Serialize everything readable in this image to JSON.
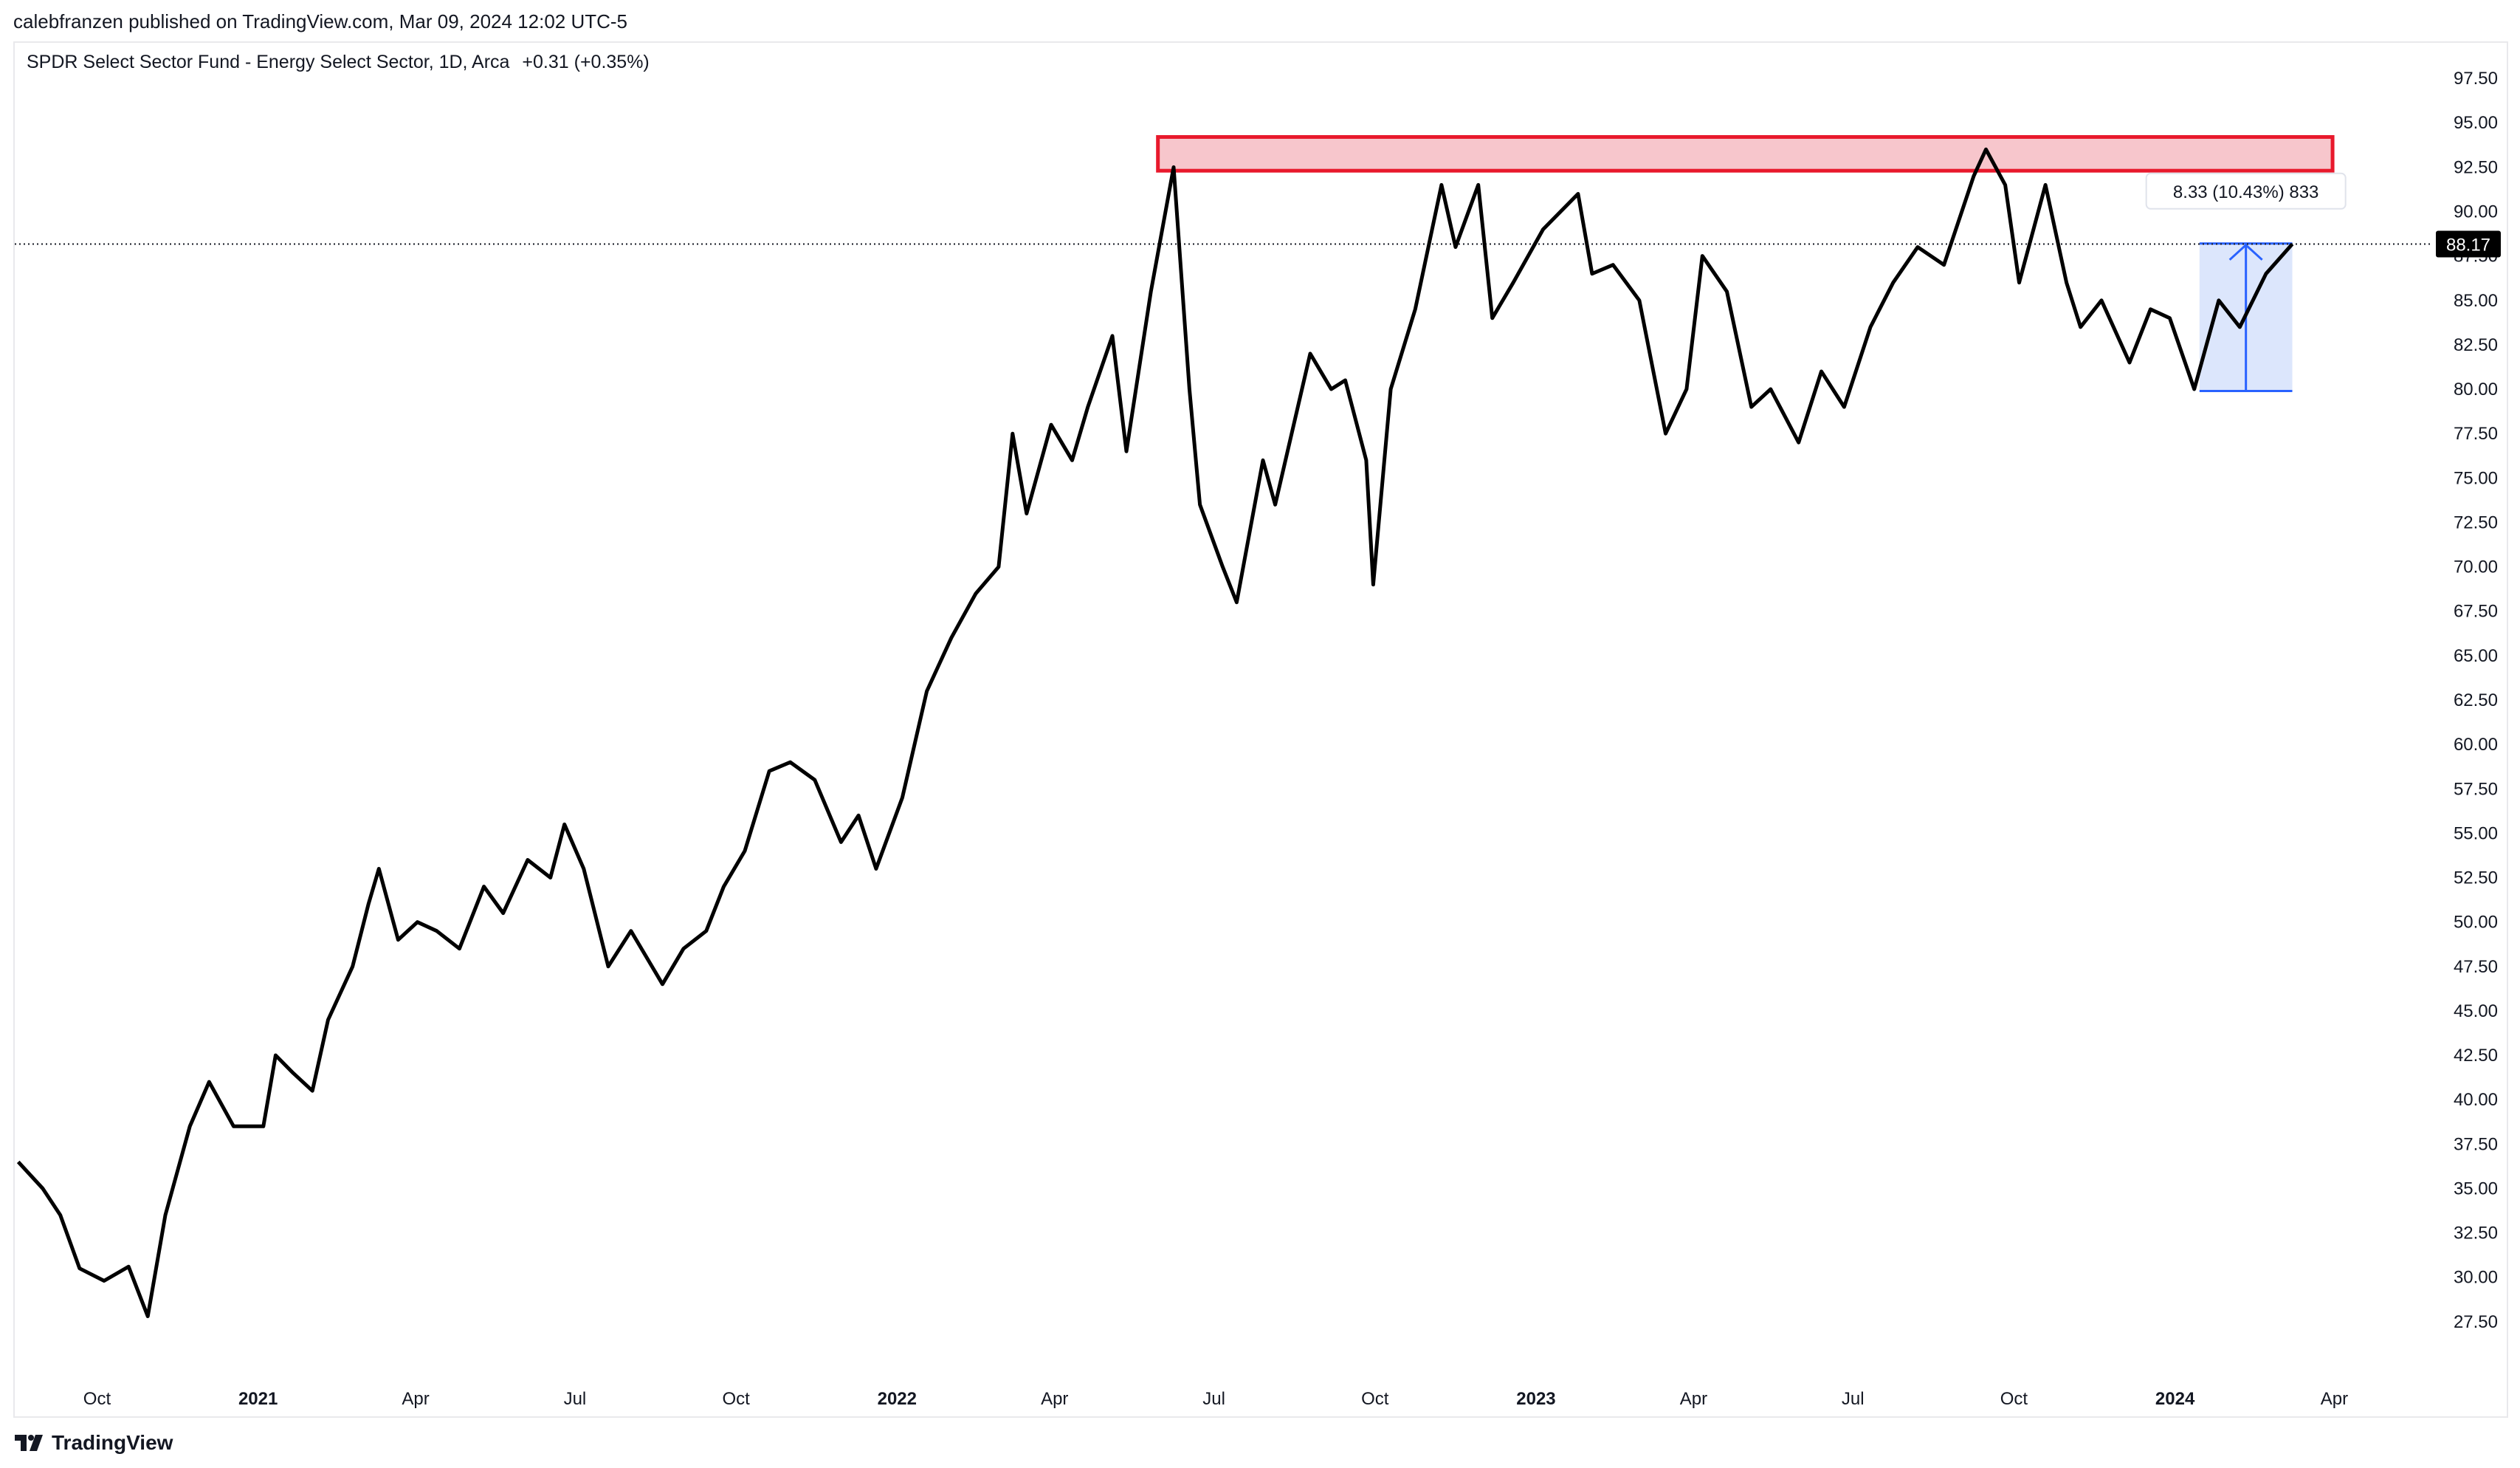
{
  "header": {
    "published": "calebfranzen published on TradingView.com, Mar 09, 2024 12:02 UTC-5",
    "symbol": "SPDR Select Sector Fund - Energy Select Sector, 1D, Arca",
    "change": "+0.31 (+0.35%)"
  },
  "footer": {
    "brand": "TradingView",
    "logo_icon": "tradingview-logo-icon"
  },
  "colors": {
    "line": "#000000",
    "resistance_fill": "#f7c6cc",
    "resistance_stroke": "#e8192c",
    "measure_fill": "#d6e2fb",
    "measure_stroke": "#2962ff",
    "last_price_bg": "#000000",
    "grid": "#f0f3fa"
  },
  "chart_data": {
    "type": "line",
    "ylim": [
      25.0,
      99.5
    ],
    "y_ticks": [
      "27.50",
      "30.00",
      "32.50",
      "35.00",
      "37.50",
      "40.00",
      "42.50",
      "45.00",
      "47.50",
      "50.00",
      "52.50",
      "55.00",
      "57.50",
      "60.00",
      "62.50",
      "65.00",
      "67.50",
      "70.00",
      "72.50",
      "75.00",
      "77.50",
      "80.00",
      "82.50",
      "85.00",
      "87.50",
      "90.00",
      "92.50",
      "95.00",
      "97.50"
    ],
    "x_ticks": [
      {
        "label": "Oct",
        "date": "2020-10-01"
      },
      {
        "label": "2021",
        "date": "2021-01-01",
        "bold": true
      },
      {
        "label": "Apr",
        "date": "2021-04-01"
      },
      {
        "label": "Jul",
        "date": "2021-07-01"
      },
      {
        "label": "Oct",
        "date": "2021-10-01"
      },
      {
        "label": "2022",
        "date": "2022-01-01",
        "bold": true
      },
      {
        "label": "Apr",
        "date": "2022-04-01"
      },
      {
        "label": "Jul",
        "date": "2022-07-01"
      },
      {
        "label": "Oct",
        "date": "2022-10-01"
      },
      {
        "label": "2023",
        "date": "2023-01-01",
        "bold": true
      },
      {
        "label": "Apr",
        "date": "2023-04-01"
      },
      {
        "label": "Jul",
        "date": "2023-07-01"
      },
      {
        "label": "Oct",
        "date": "2023-10-01"
      },
      {
        "label": "2024",
        "date": "2024-01-01",
        "bold": true
      },
      {
        "label": "Apr",
        "date": "2024-04-01"
      }
    ],
    "xlim": [
      "2020-08-15",
      "2024-05-29"
    ],
    "series": [
      {
        "points": [
          [
            "2020-08-17",
            36.5
          ],
          [
            "2020-08-31",
            35.0
          ],
          [
            "2020-09-10",
            33.5
          ],
          [
            "2020-09-21",
            30.5
          ],
          [
            "2020-10-05",
            29.8
          ],
          [
            "2020-10-19",
            30.6
          ],
          [
            "2020-10-30",
            27.8
          ],
          [
            "2020-11-09",
            33.5
          ],
          [
            "2020-11-23",
            38.5
          ],
          [
            "2020-12-04",
            41.0
          ],
          [
            "2020-12-18",
            38.5
          ],
          [
            "2021-01-04",
            38.5
          ],
          [
            "2021-01-11",
            42.5
          ],
          [
            "2021-01-21",
            41.5
          ],
          [
            "2021-02-01",
            40.5
          ],
          [
            "2021-02-10",
            44.5
          ],
          [
            "2021-02-24",
            47.5
          ],
          [
            "2021-03-05",
            51.0
          ],
          [
            "2021-03-11",
            53.0
          ],
          [
            "2021-03-22",
            49.0
          ],
          [
            "2021-04-02",
            50.0
          ],
          [
            "2021-04-13",
            49.5
          ],
          [
            "2021-04-26",
            48.5
          ],
          [
            "2021-05-10",
            52.0
          ],
          [
            "2021-05-21",
            50.5
          ],
          [
            "2021-06-04",
            53.5
          ],
          [
            "2021-06-17",
            52.5
          ],
          [
            "2021-06-25",
            55.5
          ],
          [
            "2021-07-06",
            53.0
          ],
          [
            "2021-07-20",
            47.5
          ],
          [
            "2021-08-02",
            49.5
          ],
          [
            "2021-08-20",
            46.5
          ],
          [
            "2021-09-01",
            48.5
          ],
          [
            "2021-09-14",
            49.5
          ],
          [
            "2021-09-24",
            52.0
          ],
          [
            "2021-10-06",
            54.0
          ],
          [
            "2021-10-20",
            58.5
          ],
          [
            "2021-11-01",
            59.0
          ],
          [
            "2021-11-15",
            58.0
          ],
          [
            "2021-11-30",
            54.5
          ],
          [
            "2021-12-10",
            56.0
          ],
          [
            "2021-12-20",
            53.0
          ],
          [
            "2022-01-04",
            57.0
          ],
          [
            "2022-01-18",
            63.0
          ],
          [
            "2022-02-01",
            66.0
          ],
          [
            "2022-02-15",
            68.5
          ],
          [
            "2022-02-28",
            70.0
          ],
          [
            "2022-03-08",
            77.5
          ],
          [
            "2022-03-16",
            73.0
          ],
          [
            "2022-03-30",
            78.0
          ],
          [
            "2022-04-11",
            76.0
          ],
          [
            "2022-04-20",
            79.0
          ],
          [
            "2022-05-04",
            83.0
          ],
          [
            "2022-05-12",
            76.5
          ],
          [
            "2022-05-26",
            85.5
          ],
          [
            "2022-06-08",
            92.5
          ],
          [
            "2022-06-17",
            80.0
          ],
          [
            "2022-06-23",
            73.5
          ],
          [
            "2022-07-06",
            70.0
          ],
          [
            "2022-07-14",
            68.0
          ],
          [
            "2022-07-29",
            76.0
          ],
          [
            "2022-08-05",
            73.5
          ],
          [
            "2022-08-25",
            82.0
          ],
          [
            "2022-09-06",
            80.0
          ],
          [
            "2022-09-14",
            80.5
          ],
          [
            "2022-09-26",
            76.0
          ],
          [
            "2022-09-30",
            69.0
          ],
          [
            "2022-10-10",
            80.0
          ],
          [
            "2022-10-24",
            84.5
          ],
          [
            "2022-11-08",
            91.5
          ],
          [
            "2022-11-16",
            88.0
          ],
          [
            "2022-11-29",
            91.5
          ],
          [
            "2022-12-07",
            84.0
          ],
          [
            "2022-12-19",
            86.0
          ],
          [
            "2023-01-05",
            89.0
          ],
          [
            "2023-01-25",
            91.0
          ],
          [
            "2023-02-02",
            86.5
          ],
          [
            "2023-02-14",
            87.0
          ],
          [
            "2023-03-01",
            85.0
          ],
          [
            "2023-03-16",
            77.5
          ],
          [
            "2023-03-28",
            80.0
          ],
          [
            "2023-04-06",
            87.5
          ],
          [
            "2023-04-20",
            85.5
          ],
          [
            "2023-05-04",
            79.0
          ],
          [
            "2023-05-15",
            80.0
          ],
          [
            "2023-05-31",
            77.0
          ],
          [
            "2023-06-13",
            81.0
          ],
          [
            "2023-06-26",
            79.0
          ],
          [
            "2023-07-11",
            83.5
          ],
          [
            "2023-07-24",
            86.0
          ],
          [
            "2023-08-07",
            88.0
          ],
          [
            "2023-08-22",
            87.0
          ],
          [
            "2023-09-08",
            92.0
          ],
          [
            "2023-09-15",
            93.5
          ],
          [
            "2023-09-26",
            91.5
          ],
          [
            "2023-10-04",
            86.0
          ],
          [
            "2023-10-19",
            91.5
          ],
          [
            "2023-10-31",
            86.0
          ],
          [
            "2023-11-08",
            83.5
          ],
          [
            "2023-11-20",
            85.0
          ],
          [
            "2023-12-06",
            81.5
          ],
          [
            "2023-12-18",
            84.5
          ],
          [
            "2023-12-29",
            84.0
          ],
          [
            "2024-01-12",
            80.0
          ],
          [
            "2024-01-26",
            85.0
          ],
          [
            "2024-02-07",
            83.5
          ],
          [
            "2024-02-22",
            86.5
          ],
          [
            "2024-03-08",
            88.17
          ]
        ]
      }
    ],
    "last_price": "88.17",
    "annotations": {
      "resistance_zone": {
        "y_low": 92.3,
        "y_high": 94.2,
        "x_start": "2022-05-30",
        "x_end": "2024-03-31"
      },
      "price_range": {
        "y_low": 79.9,
        "y_high": 88.2,
        "x_start": "2024-01-15",
        "x_end": "2024-03-08",
        "label": "8.33 (10.43%) 833"
      }
    }
  }
}
